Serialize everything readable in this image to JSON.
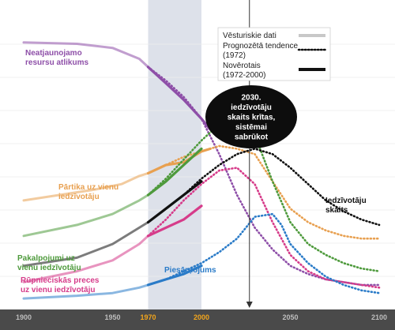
{
  "chart_data": {
    "type": "line",
    "title": "",
    "xlabel": "",
    "ylabel": "",
    "xlim": [
      1900,
      2100
    ],
    "x_ticks": [
      "1900",
      "1950",
      "1970",
      "2000",
      "2050",
      "2100"
    ],
    "x_tick_values": [
      1900,
      1950,
      1970,
      2000,
      2050,
      2100
    ],
    "highlight_ticks": [
      "1970",
      "2000"
    ],
    "shaded_range": [
      1970,
      2000
    ],
    "event_line_x": 2027,
    "legend_position": "top-right",
    "legend": [
      {
        "label": "Vēsturiskie dati",
        "style": "solid-light-gray"
      },
      {
        "label": "Prognozētā tendence (1972)",
        "style": "dotted"
      },
      {
        "label": "Novērotais (1972-2000)",
        "style": "solid-black"
      }
    ],
    "annotation": {
      "lines": [
        "2030.",
        "iedzīvotāju",
        "skaits krītas,",
        "sistēmai",
        "sabrūkot"
      ]
    },
    "series": [
      {
        "name": "Neatjaunojamo resursu atlikums",
        "label_lines": [
          "Neatjaunojamo",
          "resursu atlikums"
        ],
        "color": "#8e4fa8",
        "historical": [
          [
            1900,
            96
          ],
          [
            1930,
            95.5
          ],
          [
            1950,
            94
          ],
          [
            1965,
            90
          ]
        ],
        "observed": [
          [
            1970,
            87
          ],
          [
            1980,
            81
          ],
          [
            1990,
            75
          ],
          [
            2000,
            68
          ],
          [
            2005,
            64
          ]
        ],
        "projection": [
          [
            1970,
            87
          ],
          [
            1980,
            82
          ],
          [
            1990,
            76
          ],
          [
            2000,
            68
          ],
          [
            2010,
            55
          ],
          [
            2020,
            40
          ],
          [
            2030,
            28
          ],
          [
            2040,
            20
          ],
          [
            2050,
            14
          ],
          [
            2060,
            11
          ],
          [
            2070,
            9
          ],
          [
            2080,
            8
          ],
          [
            2090,
            7
          ],
          [
            2100,
            7
          ]
        ]
      },
      {
        "name": "Pārtika uz vienu iedzīvotāju",
        "label_lines": [
          "Pārtika uz vienu",
          "iedzīvotāju"
        ],
        "color": "#e8a050",
        "historical": [
          [
            1900,
            38
          ],
          [
            1920,
            40
          ],
          [
            1940,
            42
          ],
          [
            1955,
            44
          ],
          [
            1965,
            47
          ]
        ],
        "observed": [
          [
            1970,
            48
          ],
          [
            1980,
            51
          ],
          [
            1990,
            52
          ],
          [
            2000,
            56
          ],
          [
            2005,
            57
          ]
        ],
        "projection": [
          [
            1970,
            48
          ],
          [
            1980,
            51
          ],
          [
            1990,
            54
          ],
          [
            2000,
            56
          ],
          [
            2010,
            58
          ],
          [
            2020,
            57
          ],
          [
            2030,
            55
          ],
          [
            2040,
            45
          ],
          [
            2050,
            35
          ],
          [
            2060,
            30
          ],
          [
            2070,
            27
          ],
          [
            2080,
            25
          ],
          [
            2090,
            24
          ],
          [
            2100,
            24
          ]
        ]
      },
      {
        "name": "Pakalpojumi uz vienu iedzīvotāju",
        "label_lines": [
          "Pakalpojumi uz",
          "vienu iedzīvotāju"
        ],
        "color": "#4e9a3c",
        "historical": [
          [
            1900,
            25
          ],
          [
            1930,
            29
          ],
          [
            1950,
            33
          ],
          [
            1965,
            38
          ]
        ],
        "observed": [
          [
            1970,
            40
          ],
          [
            1980,
            45
          ],
          [
            1990,
            51
          ],
          [
            2000,
            57
          ]
        ],
        "projection": [
          [
            1970,
            40
          ],
          [
            1980,
            46
          ],
          [
            1990,
            53
          ],
          [
            2000,
            60
          ],
          [
            2010,
            66
          ],
          [
            2020,
            70
          ],
          [
            2025,
            69
          ],
          [
            2030,
            62
          ],
          [
            2040,
            45
          ],
          [
            2050,
            30
          ],
          [
            2060,
            22
          ],
          [
            2070,
            18
          ],
          [
            2080,
            15
          ],
          [
            2090,
            13
          ],
          [
            2100,
            12
          ]
        ]
      },
      {
        "name": "Iedzīvotāju skaits",
        "label_lines": [
          "Iedzīvotāju",
          "skaits"
        ],
        "color": "#111111",
        "historical": [
          [
            1900,
            14
          ],
          [
            1930,
            17
          ],
          [
            1950,
            22
          ],
          [
            1965,
            28
          ]
        ],
        "observed": [
          [
            1970,
            30
          ],
          [
            1980,
            35
          ],
          [
            1990,
            40
          ],
          [
            2000,
            45
          ]
        ],
        "projection": [
          [
            1970,
            30
          ],
          [
            1980,
            35
          ],
          [
            1990,
            40
          ],
          [
            2000,
            46
          ],
          [
            2010,
            51
          ],
          [
            2020,
            55
          ],
          [
            2030,
            57
          ],
          [
            2040,
            55
          ],
          [
            2050,
            50
          ],
          [
            2060,
            44
          ],
          [
            2070,
            38
          ],
          [
            2080,
            34
          ],
          [
            2090,
            31
          ],
          [
            2100,
            29
          ]
        ]
      },
      {
        "name": "Rūpnieciskās preces uz vienu iedzīvotāju",
        "label_lines": [
          "Rūpnieciskās preces",
          "uz vienu iedzīvotāju"
        ],
        "color": "#d63c8a",
        "historical": [
          [
            1900,
            8
          ],
          [
            1930,
            12
          ],
          [
            1950,
            16
          ],
          [
            1965,
            22
          ]
        ],
        "observed": [
          [
            1970,
            25
          ],
          [
            1980,
            28
          ],
          [
            1990,
            31
          ],
          [
            2000,
            36
          ]
        ],
        "projection": [
          [
            1970,
            25
          ],
          [
            1980,
            31
          ],
          [
            1990,
            38
          ],
          [
            2000,
            44
          ],
          [
            2010,
            49
          ],
          [
            2020,
            50
          ],
          [
            2030,
            44
          ],
          [
            2040,
            30
          ],
          [
            2050,
            18
          ],
          [
            2060,
            12
          ],
          [
            2070,
            9
          ],
          [
            2080,
            8
          ],
          [
            2090,
            7
          ],
          [
            2100,
            6
          ]
        ]
      },
      {
        "name": "Piesārņojums",
        "label_lines": [
          "Piesārņojums"
        ],
        "color": "#2a7bc8",
        "historical": [
          [
            1900,
            2
          ],
          [
            1930,
            3
          ],
          [
            1950,
            4
          ],
          [
            1965,
            6
          ]
        ],
        "observed": [
          [
            1970,
            7
          ],
          [
            1980,
            9
          ],
          [
            1990,
            11
          ],
          [
            2000,
            14
          ]
        ],
        "projection": [
          [
            1970,
            7
          ],
          [
            1980,
            9
          ],
          [
            1990,
            12
          ],
          [
            2000,
            15
          ],
          [
            2010,
            19
          ],
          [
            2020,
            24
          ],
          [
            2030,
            32
          ],
          [
            2040,
            33
          ],
          [
            2045,
            29
          ],
          [
            2050,
            22
          ],
          [
            2060,
            15
          ],
          [
            2070,
            10
          ],
          [
            2080,
            7
          ],
          [
            2090,
            5
          ],
          [
            2100,
            4
          ]
        ]
      }
    ]
  }
}
